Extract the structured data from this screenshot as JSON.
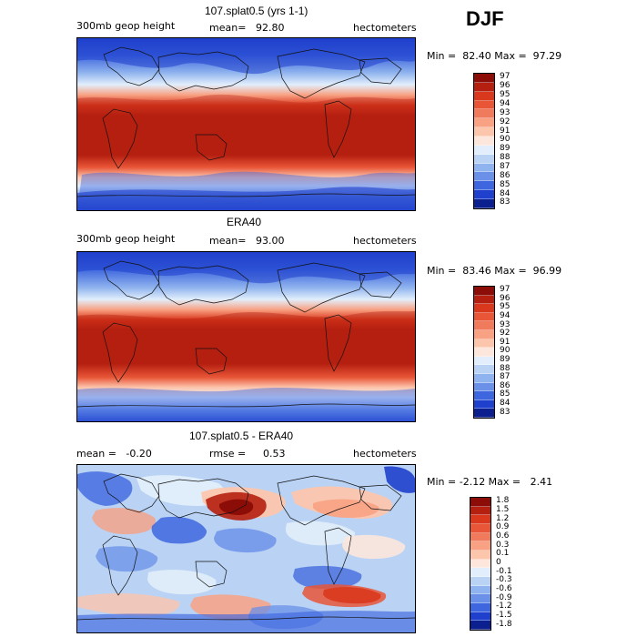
{
  "season": "DJF",
  "panels": [
    {
      "title": "107.splat0.5 (yrs 1-1)",
      "left_label": "300mb geop height",
      "mean_label": "mean=",
      "mean_value": "92.80",
      "units": "hectometers",
      "minmax": "Min =  82.40 Max =  97.29",
      "colorbar_levels": [
        "97",
        "96",
        "95",
        "94",
        "93",
        "92",
        "91",
        "90",
        "89",
        "88",
        "87",
        "86",
        "85",
        "84",
        "83"
      ],
      "colors": [
        "#8c0d07",
        "#b51f10",
        "#d9381d",
        "#e85537",
        "#f07a5c",
        "#f8a183",
        "#fcc6ad",
        "#fde7dc",
        "#e2eefb",
        "#bad3f4",
        "#8fb3ee",
        "#6a90e8",
        "#3e66de",
        "#1f40cc",
        "#0c1f8e"
      ]
    },
    {
      "title": "ERA40",
      "left_label": "300mb geop height",
      "mean_label": "mean=",
      "mean_value": "93.00",
      "units": "hectometers",
      "minmax": "Min =  83.46 Max =  96.99",
      "colorbar_levels": [
        "97",
        "96",
        "95",
        "94",
        "93",
        "92",
        "91",
        "90",
        "89",
        "88",
        "87",
        "86",
        "85",
        "84",
        "83"
      ],
      "colors": [
        "#8c0d07",
        "#b51f10",
        "#d9381d",
        "#e85537",
        "#f07a5c",
        "#f8a183",
        "#fcc6ad",
        "#fde7dc",
        "#e2eefb",
        "#bad3f4",
        "#8fb3ee",
        "#6a90e8",
        "#3e66de",
        "#1f40cc",
        "#0c1f8e"
      ]
    },
    {
      "title": "107.splat0.5 - ERA40",
      "left_label": "mean =   -0.20",
      "mean_label": "rmse =",
      "mean_value": "0.53",
      "units": "hectometers",
      "minmax": "Min = -2.12 Max =   2.41",
      "colorbar_levels": [
        "1.8",
        "1.5",
        "1.2",
        "0.9",
        "0.6",
        "0.3",
        "0.1",
        "0",
        "-0.1",
        "-0.3",
        "-0.6",
        "-0.9",
        "-1.2",
        "-1.5",
        "-1.8"
      ],
      "colors": [
        "#8c0d07",
        "#b51f10",
        "#d9381d",
        "#e85537",
        "#f07a5c",
        "#f8a183",
        "#fcc6ad",
        "#fde7dc",
        "#e2eefb",
        "#bad3f4",
        "#8fb3ee",
        "#6a90e8",
        "#3e66de",
        "#1f40cc",
        "#0c1f8e"
      ]
    }
  ]
}
